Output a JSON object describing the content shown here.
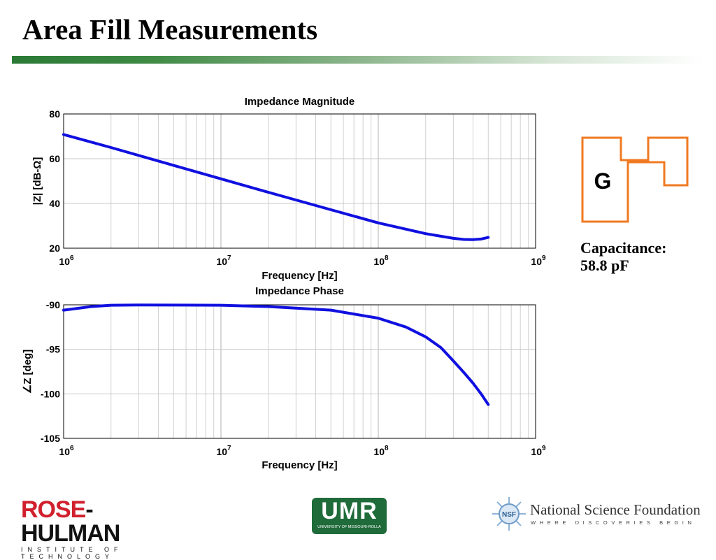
{
  "slide": {
    "title": "Area Fill Measurements",
    "capacitance_label": "Capacitance:",
    "capacitance_value": "58.8 pF"
  },
  "diagram": {
    "label": "G",
    "outline_color": "#f07a22"
  },
  "logos": {
    "rose_hulman": {
      "r": "ROSE",
      "h": "-HULMAN",
      "sub": "INSTITUTE OF TECHNOLOGY"
    },
    "umr": {
      "name": "UMR",
      "sub": "UNIVERSITY OF MISSOURI-ROLLA"
    },
    "nsf": {
      "badge": "NSF",
      "name": "National Science Foundation",
      "tagline": "WHERE DISCOVERIES BEGIN"
    }
  },
  "chart_data": [
    {
      "type": "line",
      "title": "Impedance Magnitude",
      "xlabel": "Frequency [Hz]",
      "ylabel": "|Z| [dB-Ω]",
      "xscale": "log",
      "xlim": [
        1000000,
        1000000000
      ],
      "ylim": [
        20,
        80
      ],
      "yticks": [
        20,
        40,
        60,
        80
      ],
      "xtick_labels": [
        {
          "base": "10",
          "exp": "6"
        },
        {
          "base": "10",
          "exp": "7"
        },
        {
          "base": "10",
          "exp": "8"
        },
        {
          "base": "10",
          "exp": "9"
        }
      ],
      "grid": true,
      "line_color": "#1010e0",
      "series": [
        {
          "x": [
            1000000,
            2000000,
            5000000,
            10000000,
            20000000,
            50000000,
            100000000,
            200000000,
            300000000,
            350000000,
            400000000,
            450000000,
            500000000
          ],
          "y": [
            70.8,
            65.0,
            57.0,
            51.0,
            45.0,
            37.2,
            31.3,
            26.5,
            24.4,
            23.9,
            23.8,
            24.1,
            24.8
          ]
        }
      ]
    },
    {
      "type": "line",
      "title": "Impedance Phase",
      "xlabel": "Frequency [Hz]",
      "ylabel": "∠Z [deg]",
      "xscale": "log",
      "xlim": [
        1000000,
        1000000000
      ],
      "ylim": [
        -105,
        -90
      ],
      "yticks": [
        -90,
        -95,
        -100,
        -105
      ],
      "xtick_labels": [
        {
          "base": "10",
          "exp": "6"
        },
        {
          "base": "10",
          "exp": "7"
        },
        {
          "base": "10",
          "exp": "8"
        },
        {
          "base": "10",
          "exp": "9"
        }
      ],
      "grid": true,
      "line_color": "#1010e0",
      "series": [
        {
          "x": [
            1000000,
            1500000,
            2000000,
            3000000,
            5000000,
            10000000,
            20000000,
            50000000,
            100000000,
            150000000,
            200000000,
            250000000,
            300000000,
            350000000,
            400000000,
            450000000,
            500000000
          ],
          "y": [
            -90.6,
            -90.2,
            -90.05,
            -90.02,
            -90.03,
            -90.05,
            -90.2,
            -90.6,
            -91.5,
            -92.5,
            -93.6,
            -94.8,
            -96.3,
            -97.6,
            -98.8,
            -100.0,
            -101.2
          ]
        }
      ]
    }
  ]
}
